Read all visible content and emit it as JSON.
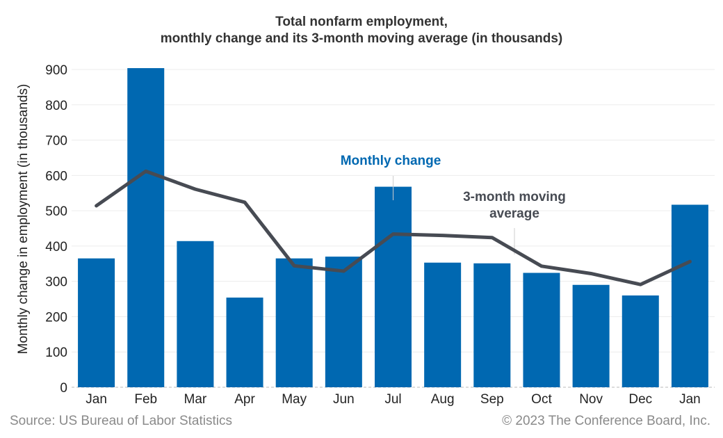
{
  "chart_data": {
    "type": "bar",
    "title_line1": "Total nonfarm employment,",
    "title_line2": "monthly change and its 3-month moving average (in thousands)",
    "xlabel": "",
    "ylabel": "Monthly change in employment (in thousands)",
    "categories": [
      "Jan",
      "Feb",
      "Mar",
      "Apr",
      "May",
      "Jun",
      "Jul",
      "Aug",
      "Sep",
      "Oct",
      "Nov",
      "Dec",
      "Jan"
    ],
    "ylim": [
      0,
      900
    ],
    "yticks": [
      0,
      100,
      200,
      300,
      400,
      500,
      600,
      700,
      800,
      900
    ],
    "grid": true,
    "series": [
      {
        "name": "Monthly change",
        "type": "bar",
        "color": "#0068b1",
        "values": [
          365,
          904,
          414,
          254,
          365,
          370,
          568,
          353,
          351,
          324,
          290,
          260,
          517
        ]
      },
      {
        "name": "3-month moving average",
        "type": "line",
        "color": "#474b53",
        "values": [
          514,
          612,
          561,
          524,
          344,
          329,
          434,
          430,
          424,
          343,
          322,
          291,
          356
        ]
      }
    ],
    "annotations": {
      "monthly_change": "Monthly change",
      "moving_average_line1": "3-month moving",
      "moving_average_line2": "average"
    }
  },
  "footer": {
    "source": "Source: US Bureau of Labor Statistics",
    "copyright": "© 2023 The Conference Board, Inc."
  }
}
